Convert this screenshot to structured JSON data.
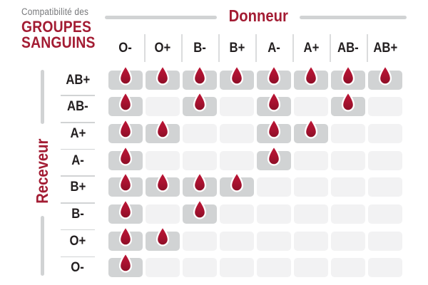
{
  "title": {
    "eyebrow": "Compatibilité des",
    "line1": "GROUPES",
    "line2": "SANGUINS"
  },
  "axes": {
    "donor_label": "Donneur",
    "receiver_label": "Receveur"
  },
  "chart_data": {
    "type": "heatmap",
    "title": "Compatibilité des GROUPES SANGUINS",
    "x_axis_label": "Donneur",
    "y_axis_label": "Receveur",
    "columns": [
      "O-",
      "O+",
      "B-",
      "B+",
      "A-",
      "A+",
      "AB-",
      "AB+"
    ],
    "rows": [
      "AB+",
      "AB-",
      "A+",
      "A-",
      "B+",
      "B-",
      "O+",
      "O-"
    ],
    "matrix": [
      [
        1,
        1,
        1,
        1,
        1,
        1,
        1,
        1
      ],
      [
        1,
        0,
        1,
        0,
        1,
        0,
        1,
        0
      ],
      [
        1,
        1,
        0,
        0,
        1,
        1,
        0,
        0
      ],
      [
        1,
        0,
        0,
        0,
        1,
        0,
        0,
        0
      ],
      [
        1,
        1,
        1,
        1,
        0,
        0,
        0,
        0
      ],
      [
        1,
        0,
        1,
        0,
        0,
        0,
        0,
        0
      ],
      [
        1,
        1,
        0,
        0,
        0,
        0,
        0,
        0
      ],
      [
        1,
        0,
        0,
        0,
        0,
        0,
        0,
        0
      ]
    ],
    "marker": "blood-drop",
    "cell_value_meaning": "1 = compatible (blood drop shown), 0 = not compatible (empty cell)",
    "legend_position": "none",
    "grid": false
  },
  "colors": {
    "accent_red": "#a31c33",
    "drop_red_top": "#bf1636",
    "drop_red_bottom": "#8a0e26",
    "cell_filled": "#d1d3d4",
    "cell_empty": "#f2f2f3",
    "label_dark": "#231f20",
    "muted_gray": "#77787b",
    "line_gray": "#d1d3d4"
  }
}
